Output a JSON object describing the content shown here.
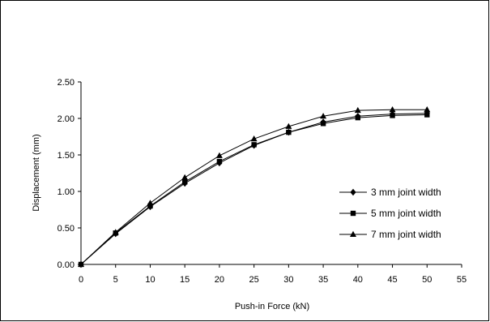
{
  "chart_data": {
    "type": "line",
    "title": "",
    "xlabel": "Push-in Force (kN)",
    "ylabel": "Displacement (mm)",
    "xlim": [
      0,
      55
    ],
    "ylim": [
      0,
      2.5
    ],
    "x_ticks": [
      "0",
      "5",
      "10",
      "15",
      "20",
      "25",
      "30",
      "35",
      "40",
      "45",
      "50",
      "55"
    ],
    "y_ticks": [
      "0.00",
      "0.50",
      "1.00",
      "1.50",
      "2.00",
      "2.50"
    ],
    "grid": false,
    "legend_position": "right",
    "x": [
      0,
      5,
      10,
      15,
      20,
      25,
      30,
      35,
      40,
      45,
      50
    ],
    "series": [
      {
        "name": "3 mm joint width",
        "marker": "diamond",
        "values": [
          0.0,
          0.42,
          0.79,
          1.11,
          1.39,
          1.63,
          1.81,
          1.95,
          2.03,
          2.06,
          2.07
        ]
      },
      {
        "name": "5 mm joint width",
        "marker": "square",
        "values": [
          0.0,
          0.43,
          0.8,
          1.13,
          1.41,
          1.64,
          1.81,
          1.93,
          2.01,
          2.04,
          2.05
        ]
      },
      {
        "name": "7 mm joint width",
        "marker": "triangle",
        "values": [
          0.0,
          0.44,
          0.84,
          1.19,
          1.49,
          1.72,
          1.89,
          2.03,
          2.11,
          2.12,
          2.12
        ]
      }
    ],
    "colors": {
      "line": "#000000",
      "marker": "#000000"
    }
  }
}
